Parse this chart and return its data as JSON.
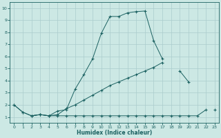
{
  "xlabel": "Humidex (Indice chaleur)",
  "xlim": [
    -0.5,
    23.5
  ],
  "ylim": [
    0.5,
    10.5
  ],
  "bg_color": "#cce8e4",
  "line_color": "#1a6060",
  "grid_color": "#aacccc",
  "xticks": [
    0,
    1,
    2,
    3,
    4,
    5,
    6,
    7,
    8,
    9,
    10,
    11,
    12,
    13,
    14,
    15,
    16,
    17,
    18,
    19,
    20,
    21,
    22,
    23
  ],
  "yticks": [
    1,
    2,
    3,
    4,
    5,
    6,
    7,
    8,
    9,
    10
  ],
  "line1_y": [
    2.0,
    1.4,
    1.1,
    1.2,
    1.1,
    1.5,
    1.6,
    3.3,
    4.5,
    5.8,
    7.9,
    9.3,
    9.3,
    9.6,
    9.7,
    9.75,
    7.3,
    5.8,
    null,
    null,
    null,
    null,
    null,
    null
  ],
  "line2_y": [
    2.0,
    1.4,
    1.1,
    1.2,
    1.1,
    1.2,
    1.7,
    2.0,
    2.4,
    2.8,
    3.2,
    3.6,
    3.9,
    4.2,
    4.5,
    4.8,
    5.1,
    5.5,
    null,
    4.8,
    3.9,
    null,
    null,
    1.6
  ],
  "line3_y": [
    null,
    null,
    1.1,
    1.2,
    1.1,
    1.1,
    1.1,
    1.1,
    1.1,
    1.1,
    1.1,
    1.1,
    1.1,
    1.1,
    1.1,
    1.1,
    1.1,
    1.1,
    1.1,
    1.1,
    1.1,
    1.1,
    1.6,
    null
  ]
}
